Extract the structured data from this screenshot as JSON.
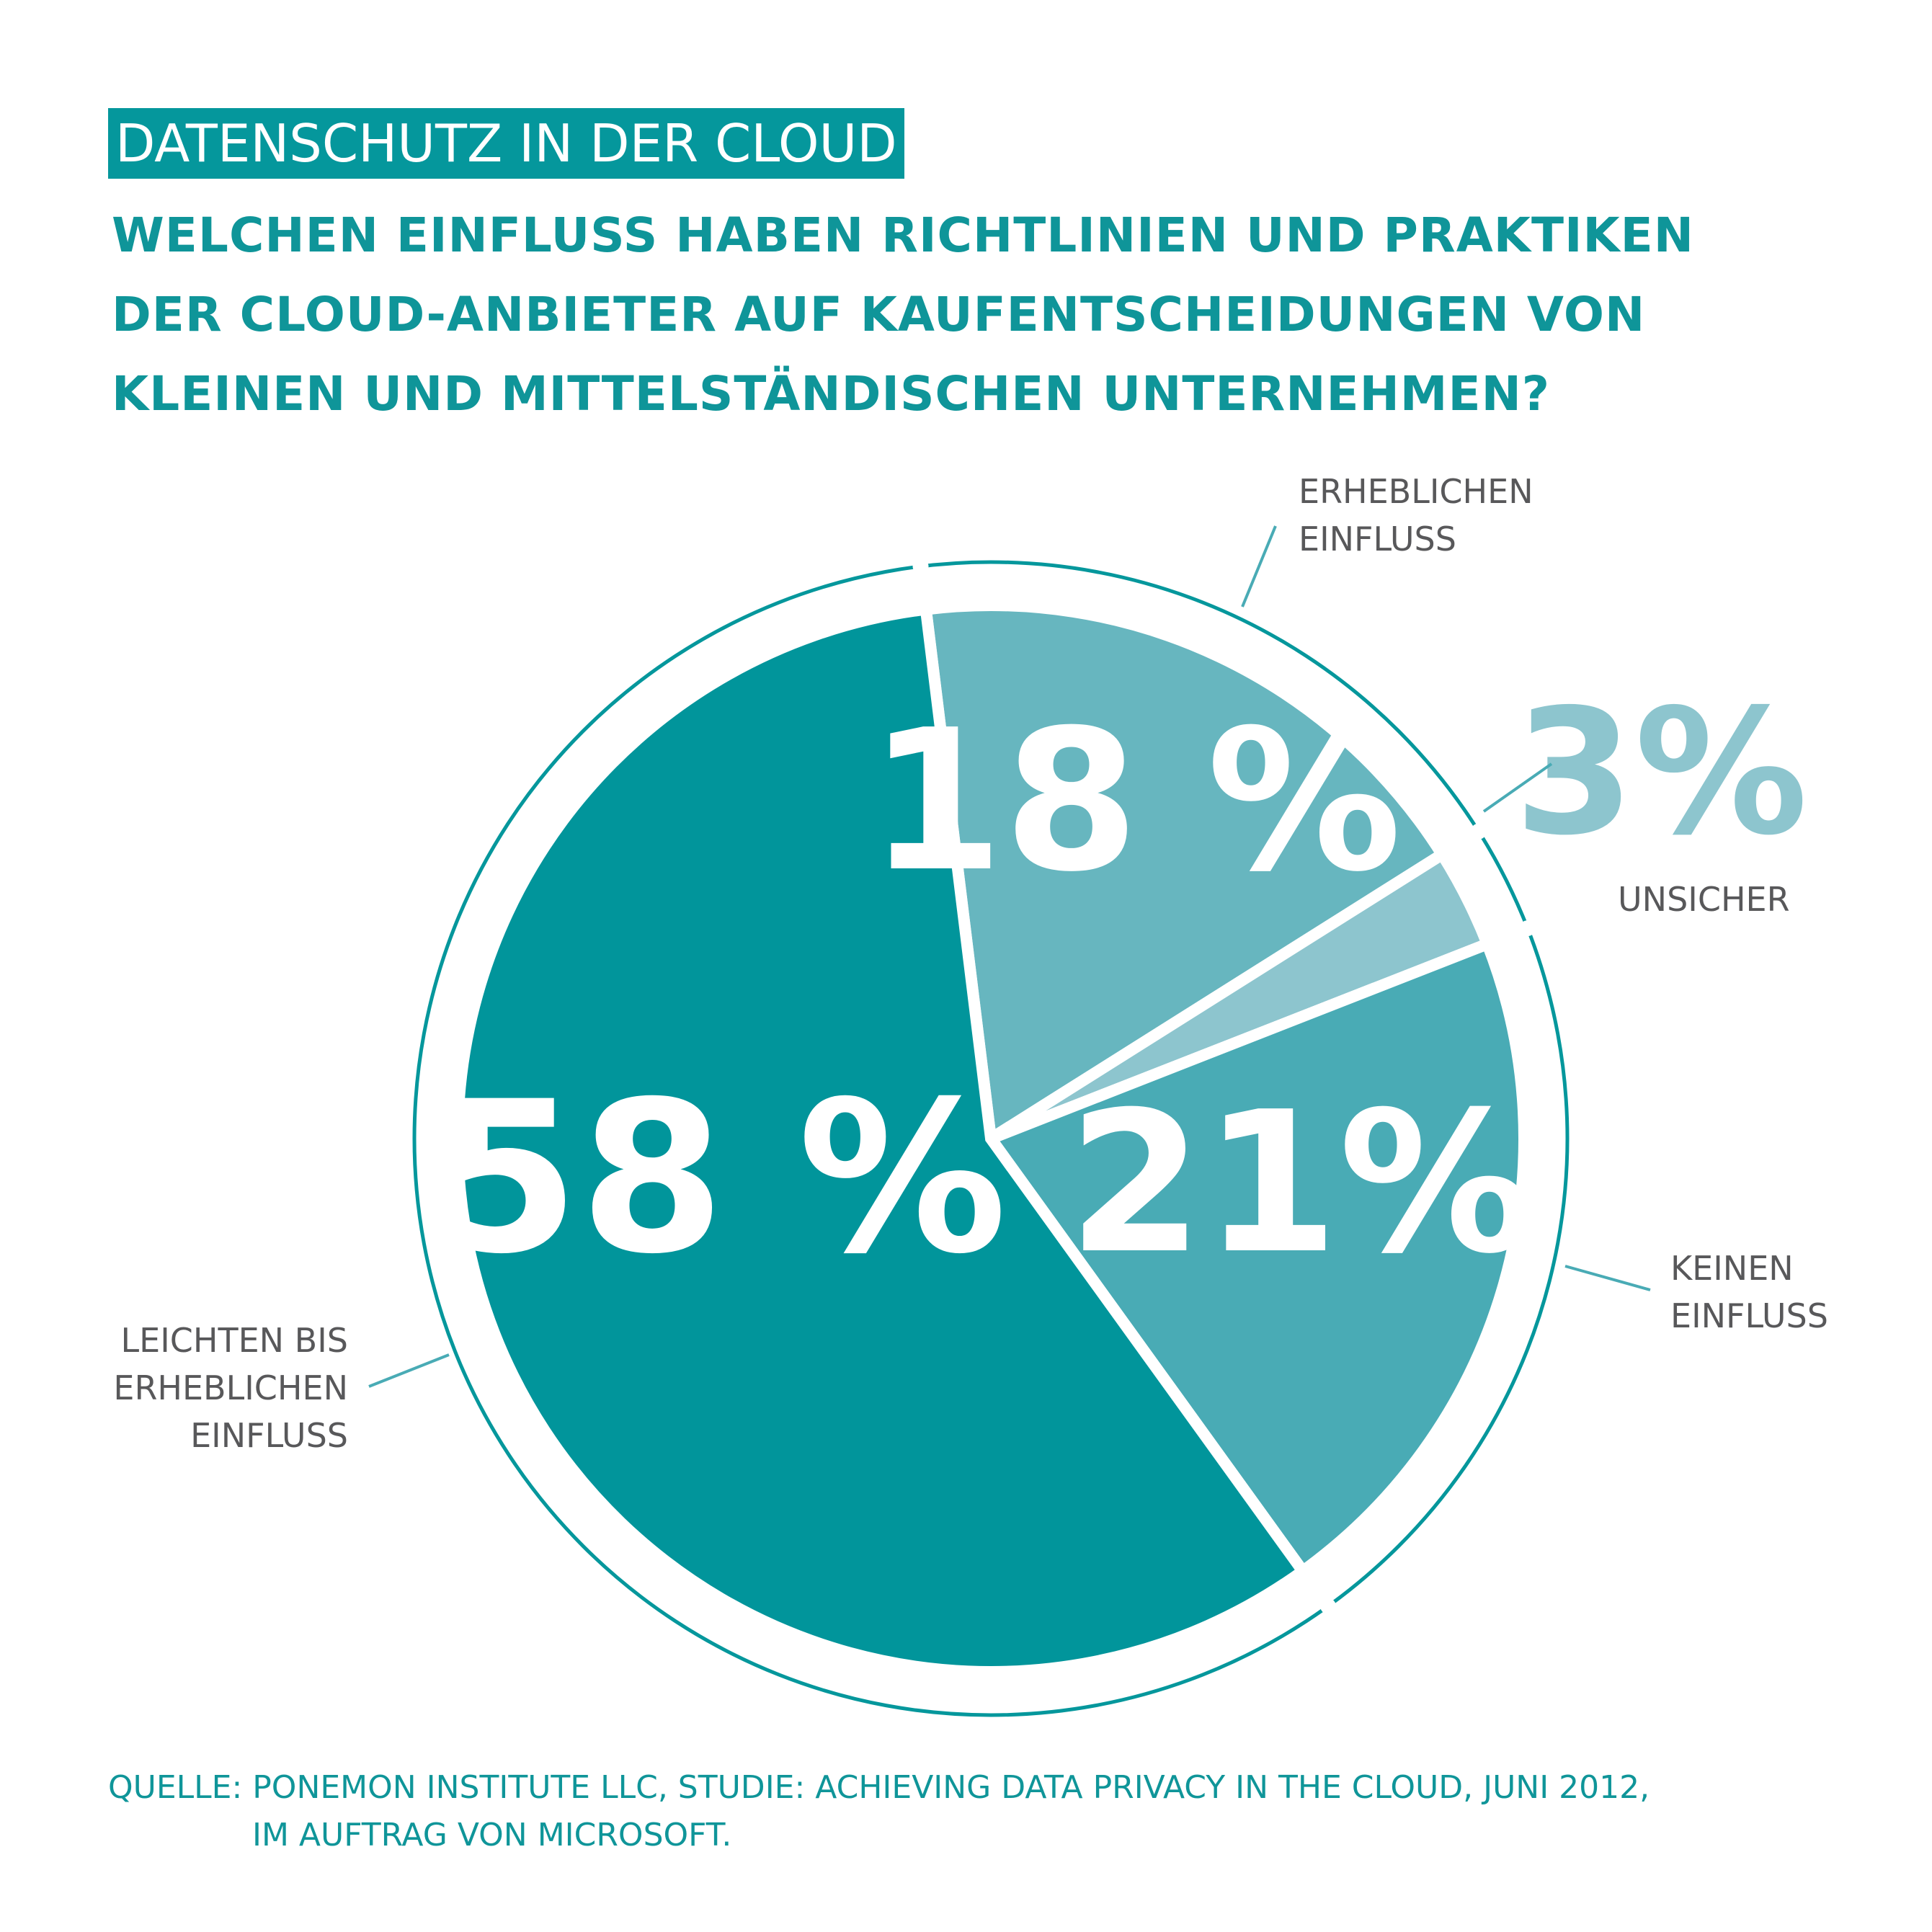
{
  "header": {
    "title": "DATENSCHUTZ IN DER CLOUD",
    "subtitle_lines": [
      "WELCHEN EINFLUSS HABEN RICHTLINIEN UND PRAKTIKEN",
      "DER CLOUD-ANBIETER AUF KAUFENTSCHEIDUNGEN VON",
      "KLEINEN UND MITTELSTÄNDISCHEN UNTERNEHMEN?"
    ]
  },
  "colors": {
    "accent": "#05979c",
    "slice_58": "#01959b",
    "slice_18": "#67b6bf",
    "slice_3": "#8dc5ce",
    "slice_21": "#49abb5",
    "label_text": "#58585a"
  },
  "chart_data": {
    "type": "pie",
    "title": "WELCHEN EINFLUSS HABEN RICHTLINIEN UND PRAKTIKEN DER CLOUD-ANBIETER AUF KAUFENTSCHEIDUNGEN VON KLEINEN UND MITTELSTÄNDISCHEN UNTERNEHMEN?",
    "slices": [
      {
        "value": 18,
        "display": "18 %",
        "label_lines": [
          "ERHEBLICHEN",
          "EINFLUSS"
        ]
      },
      {
        "value": 3,
        "display": "3%",
        "label_lines": [
          "UNSICHER"
        ]
      },
      {
        "value": 21,
        "display": "21%",
        "label_lines": [
          "KEINEN",
          "EINFLUSS"
        ]
      },
      {
        "value": 58,
        "display": "58 %",
        "label_lines": [
          "LEICHTEN BIS",
          "ERHEBLICHEN",
          "EINFLUSS"
        ]
      }
    ]
  },
  "source": {
    "line1": "QUELLE: PONEMON INSTITUTE LLC, STUDIE: ACHIEVING DATA PRIVACY IN THE CLOUD, JUNI 2012,",
    "line2": "IM AUFTRAG VON MICROSOFT."
  }
}
